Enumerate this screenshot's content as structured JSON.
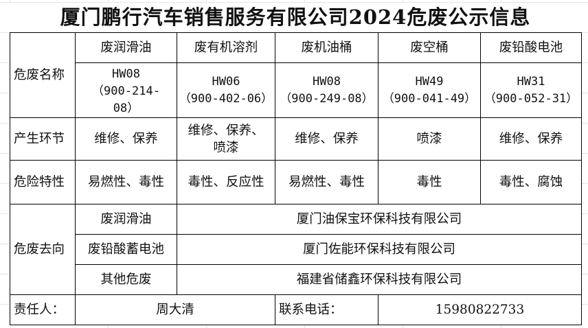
{
  "title": "厦门鹏行汽车销售服务有限公司2024危废公示信息",
  "rows": {
    "name_label": "危废名称",
    "stage_label": "产生环节",
    "hazard_label": "危险特性",
    "destination_label": "危废去向"
  },
  "wastes": [
    {
      "name": "废润滑油",
      "code": "HW08",
      "sub": "（900-214-08）",
      "stage": "维修、保养",
      "hazard": "易燃性、毒性"
    },
    {
      "name": "废有机溶剂",
      "code": "HW06",
      "sub": "（900-402-06）",
      "stage": "维修、保养、喷漆",
      "hazard": "毒性、反应性"
    },
    {
      "name": "废机油桶",
      "code": "HW08",
      "sub": "（900-249-08）",
      "stage": "维修、保养",
      "hazard": "易燃性、毒性"
    },
    {
      "name": "废空桶",
      "code": "HW49",
      "sub": "（900-041-49）",
      "stage": "喷漆",
      "hazard": "毒性"
    },
    {
      "name": "废铅酸电池",
      "code": "HW31",
      "sub": "（900-052-31）",
      "stage": "维修、保养",
      "hazard": "毒性、腐蚀"
    }
  ],
  "destinations": [
    {
      "waste": "废润滑油",
      "company": "厦门油保宝环保科技有限公司"
    },
    {
      "waste": "废铅酸蓄电池",
      "company": "厦门佐能环保科技有限公司"
    },
    {
      "waste": "其他危废",
      "company": "福建省储鑫环保科技有限公司"
    }
  ],
  "footer": {
    "person_label": "责任人：",
    "person": "周大清",
    "phone_label": "联系电话：",
    "phone": "15980822733"
  }
}
